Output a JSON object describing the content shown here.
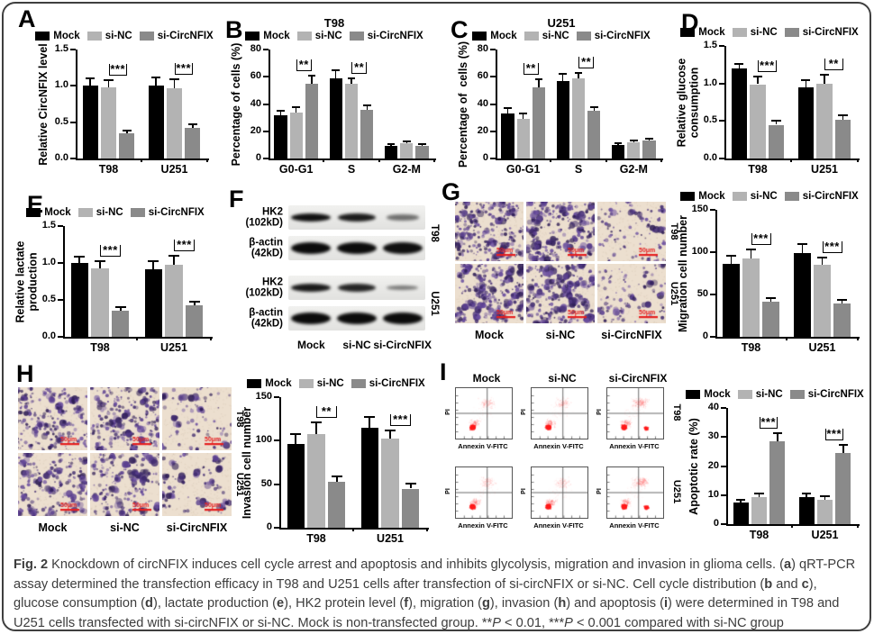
{
  "figure": {
    "caption_segments": [
      {
        "t": "Fig. 2",
        "b": true
      },
      {
        "t": " Knockdown of circNFIX induces cell cycle arrest and apoptosis and inhibits glycolysis, migration and invasion in glioma cells. ("
      },
      {
        "t": "a",
        "b": true
      },
      {
        "t": ") qRT-PCR assay determined the transfection efficacy in T98 and U251 cells after transfection of si-circNFIX or si-NC. Cell cycle distribution ("
      },
      {
        "t": "b",
        "b": true
      },
      {
        "t": " and "
      },
      {
        "t": "c",
        "b": true
      },
      {
        "t": "), glucose consumption ("
      },
      {
        "t": "d",
        "b": true
      },
      {
        "t": "), lactate production ("
      },
      {
        "t": "e",
        "b": true
      },
      {
        "t": "), HK2 protein level ("
      },
      {
        "t": "f",
        "b": true
      },
      {
        "t": "), migration ("
      },
      {
        "t": "g",
        "b": true
      },
      {
        "t": "), invasion ("
      },
      {
        "t": "h",
        "b": true
      },
      {
        "t": ") and apoptosis ("
      },
      {
        "t": "i",
        "b": true
      },
      {
        "t": ") were determined in T98 and U251 cells transfected with si-circNFIX or si-NC. Mock is non-transfected group. **"
      },
      {
        "t": "P",
        "i": true
      },
      {
        "t": " < 0.01, ***"
      },
      {
        "t": "P",
        "i": true
      },
      {
        "t": " < 0.001 compared with si-NC group"
      }
    ]
  },
  "colors": {
    "mock": "#000000",
    "si_nc": "#b3b3b3",
    "si_circnfix": "#8a8a8a",
    "scale_bar_red": "#e61f1f",
    "flow_dot_red": "#ff1f1f",
    "transwell_bg": "#ecdfcf",
    "border": "#3f3f3f"
  },
  "panels": {
    "A": {
      "label": "A"
    },
    "B": {
      "label": "B"
    },
    "C": {
      "label": "C"
    },
    "D": {
      "label": "D"
    },
    "E": {
      "label": "E"
    },
    "F": {
      "label": "F",
      "lanes": [
        "Mock",
        "si-NC",
        "si-CircNFIX"
      ],
      "groups": [
        {
          "side": "T98",
          "rows": [
            {
              "label": "HK2\n(102kD)",
              "bands": [
                {
                  "in": 0.97,
                  "w": 1
                },
                {
                  "in": 0.92,
                  "w": 0.95
                },
                {
                  "in": 0.55,
                  "w": 0.82,
                  "h": 0.7
                }
              ]
            },
            {
              "label": "β-actin\n(42kD)",
              "bands": [
                {
                  "in": 1,
                  "w": 1
                },
                {
                  "in": 1,
                  "w": 1
                },
                {
                  "in": 0.98,
                  "w": 1
                }
              ]
            }
          ]
        },
        {
          "side": "U251",
          "rows": [
            {
              "label": "HK2\n(102kD)",
              "bands": [
                {
                  "in": 0.93,
                  "w": 1
                },
                {
                  "in": 0.88,
                  "w": 0.95
                },
                {
                  "in": 0.5,
                  "w": 0.8,
                  "h": 0.6
                }
              ]
            },
            {
              "label": "β-actin\n(42kD)",
              "bands": [
                {
                  "in": 1,
                  "w": 1
                },
                {
                  "in": 1,
                  "w": 1
                },
                {
                  "in": 1,
                  "w": 1
                }
              ]
            }
          ]
        }
      ]
    },
    "G": {
      "label": "G",
      "images": {
        "rows": [
          "T98",
          "U251"
        ],
        "cols": [
          "Mock",
          "si-NC",
          "si-CircNFIX"
        ],
        "scale_bar": "50μm",
        "densities": [
          [
            170,
            160,
            62
          ],
          [
            168,
            175,
            66
          ]
        ]
      }
    },
    "H": {
      "label": "H",
      "images": {
        "rows": [
          "T98",
          "U251"
        ],
        "cols": [
          "Mock",
          "si-NC",
          "si-CircNFIX"
        ],
        "scale_bar": "50μm",
        "densities": [
          [
            150,
            145,
            55
          ],
          [
            140,
            135,
            50
          ]
        ]
      }
    },
    "I": {
      "label": "I",
      "flow": {
        "cols": [
          "Mock",
          "si-NC",
          "si-CircNFIX"
        ],
        "rows": [
          "T98",
          "U251"
        ],
        "xlabel": "Annexin V-FITC",
        "ylabel": "PI"
      }
    }
  },
  "chart_data": [
    {
      "panel": "A",
      "type": "bar",
      "title": "",
      "ylabel": "Relative CircNFIX level",
      "ylim": [
        0,
        1.5
      ],
      "yticks": [
        "0.0",
        "0.5",
        "1.0",
        "1.5"
      ],
      "categories": [
        "T98",
        "U251"
      ],
      "series": [
        {
          "name": "Mock",
          "color": "#000000",
          "values": [
            1.0,
            1.01
          ],
          "errors": [
            0.1,
            0.1
          ]
        },
        {
          "name": "si-NC",
          "color": "#b3b3b3",
          "values": [
            0.98,
            0.97
          ],
          "errors": [
            0.1,
            0.12
          ]
        },
        {
          "name": "si-CircNFIX",
          "color": "#8a8a8a",
          "values": [
            0.35,
            0.42
          ],
          "errors": [
            0.04,
            0.05
          ]
        }
      ],
      "sig": [
        {
          "cat": 0,
          "from": 1,
          "to": 2,
          "label": "***"
        },
        {
          "cat": 1,
          "from": 1,
          "to": 2,
          "label": "***"
        }
      ]
    },
    {
      "panel": "B",
      "type": "bar",
      "title": "T98",
      "ylabel": "Percentage of cells (%)",
      "ylim": [
        0,
        80
      ],
      "yticks": [
        "0",
        "20",
        "40",
        "60",
        "80"
      ],
      "categories": [
        "G0-G1",
        "S",
        "G2-M"
      ],
      "series": [
        {
          "name": "Mock",
          "color": "#000000",
          "values": [
            32,
            59,
            9
          ],
          "errors": [
            3,
            6,
            1.5
          ]
        },
        {
          "name": "si-NC",
          "color": "#b3b3b3",
          "values": [
            34,
            55,
            11
          ],
          "errors": [
            4,
            4,
            1.5
          ]
        },
        {
          "name": "si-CircNFIX",
          "color": "#8a8a8a",
          "values": [
            55,
            36,
            9
          ],
          "errors": [
            6,
            3,
            1.5
          ]
        }
      ],
      "sig": [
        {
          "cat": 0,
          "from": 1,
          "to": 2,
          "label": "**"
        },
        {
          "cat": 1,
          "from": 1,
          "to": 2,
          "label": "**"
        }
      ]
    },
    {
      "panel": "C",
      "type": "bar",
      "title": "U251",
      "ylabel": "Percentage of  cells (%)",
      "ylim": [
        0,
        80
      ],
      "yticks": [
        "0",
        "20",
        "40",
        "60",
        "80"
      ],
      "categories": [
        "G0-G1",
        "S",
        "G2-M"
      ],
      "series": [
        {
          "name": "Mock",
          "color": "#000000",
          "values": [
            33,
            57,
            10
          ],
          "errors": [
            4,
            5,
            1
          ]
        },
        {
          "name": "si-NC",
          "color": "#b3b3b3",
          "values": [
            29,
            59,
            12
          ],
          "errors": [
            4,
            4,
            1.5
          ]
        },
        {
          "name": "si-CircNFIX",
          "color": "#8a8a8a",
          "values": [
            52,
            35,
            13
          ],
          "errors": [
            6,
            3,
            1.5
          ]
        }
      ],
      "sig": [
        {
          "cat": 0,
          "from": 1,
          "to": 2,
          "label": "**"
        },
        {
          "cat": 1,
          "from": 1,
          "to": 2,
          "label": "**"
        }
      ]
    },
    {
      "panel": "D",
      "type": "bar",
      "title": "",
      "ylabel": "Relative glucose\nconsumption",
      "ylim": [
        0,
        1.5
      ],
      "yticks": [
        "0.0",
        "0.5",
        "1.0",
        "1.5"
      ],
      "categories": [
        "T98",
        "U251"
      ],
      "series": [
        {
          "name": "Mock",
          "color": "#000000",
          "values": [
            1.2,
            0.95
          ],
          "errors": [
            0.06,
            0.09
          ]
        },
        {
          "name": "si-NC",
          "color": "#b3b3b3",
          "values": [
            0.99,
            1.0
          ],
          "errors": [
            0.1,
            0.12
          ]
        },
        {
          "name": "si-CircNFIX",
          "color": "#8a8a8a",
          "values": [
            0.45,
            0.52
          ],
          "errors": [
            0.05,
            0.06
          ]
        }
      ],
      "sig": [
        {
          "cat": 0,
          "from": 1,
          "to": 2,
          "label": "***"
        },
        {
          "cat": 1,
          "from": 1,
          "to": 2,
          "label": "**"
        }
      ]
    },
    {
      "panel": "E",
      "type": "bar",
      "title": "",
      "ylabel": "Relative lactate\nproduction",
      "ylim": [
        0,
        1.5
      ],
      "yticks": [
        "0.0",
        "0.5",
        "1.0",
        "1.5"
      ],
      "categories": [
        "T98",
        "U251"
      ],
      "series": [
        {
          "name": "Mock",
          "color": "#000000",
          "values": [
            1.0,
            0.92
          ],
          "errors": [
            0.08,
            0.1
          ]
        },
        {
          "name": "si-NC",
          "color": "#b3b3b3",
          "values": [
            0.93,
            0.98
          ],
          "errors": [
            0.09,
            0.12
          ]
        },
        {
          "name": "si-CircNFIX",
          "color": "#8a8a8a",
          "values": [
            0.35,
            0.43
          ],
          "errors": [
            0.05,
            0.05
          ]
        }
      ],
      "sig": [
        {
          "cat": 0,
          "from": 1,
          "to": 2,
          "label": "***"
        },
        {
          "cat": 1,
          "from": 1,
          "to": 2,
          "label": "***"
        }
      ]
    },
    {
      "panel": "G",
      "type": "bar",
      "title": "",
      "ylabel": "Migration cell number",
      "ylim": [
        0,
        150
      ],
      "yticks": [
        "0",
        "50",
        "100",
        "150"
      ],
      "categories": [
        "T98",
        "U251"
      ],
      "series": [
        {
          "name": "Mock",
          "color": "#000000",
          "values": [
            86,
            99
          ],
          "errors": [
            10,
            11
          ]
        },
        {
          "name": "si-NC",
          "color": "#b3b3b3",
          "values": [
            93,
            85
          ],
          "errors": [
            10,
            9
          ]
        },
        {
          "name": "si-CircNFIX",
          "color": "#8a8a8a",
          "values": [
            41,
            39
          ],
          "errors": [
            5,
            5
          ]
        }
      ],
      "sig": [
        {
          "cat": 0,
          "from": 1,
          "to": 2,
          "label": "***"
        },
        {
          "cat": 1,
          "from": 1,
          "to": 2,
          "label": "***"
        }
      ]
    },
    {
      "panel": "H",
      "type": "bar",
      "title": "",
      "ylabel": "Invasion cell number",
      "ylim": [
        0,
        150
      ],
      "yticks": [
        "0",
        "50",
        "100",
        "150"
      ],
      "categories": [
        "T98",
        "U251"
      ],
      "series": [
        {
          "name": "Mock",
          "color": "#000000",
          "values": [
            96,
            115
          ],
          "errors": [
            12,
            12
          ]
        },
        {
          "name": "si-NC",
          "color": "#b3b3b3",
          "values": [
            108,
            102
          ],
          "errors": [
            13,
            10
          ]
        },
        {
          "name": "si-CircNFIX",
          "color": "#8a8a8a",
          "values": [
            53,
            45
          ],
          "errors": [
            6,
            6
          ]
        }
      ],
      "sig": [
        {
          "cat": 0,
          "from": 1,
          "to": 2,
          "label": "**"
        },
        {
          "cat": 1,
          "from": 1,
          "to": 2,
          "label": "***"
        }
      ]
    },
    {
      "panel": "I",
      "type": "bar",
      "title": "",
      "ylabel": "Apoptotic rate (%)",
      "ylim": [
        0,
        40
      ],
      "yticks": [
        "0",
        "10",
        "20",
        "30",
        "40"
      ],
      "categories": [
        "T98",
        "U251"
      ],
      "series": [
        {
          "name": "Mock",
          "color": "#000000",
          "values": [
            7.5,
            9.3
          ],
          "errors": [
            1,
            1.2
          ]
        },
        {
          "name": "si-NC",
          "color": "#b3b3b3",
          "values": [
            9.2,
            8.5
          ],
          "errors": [
            1.2,
            1.2
          ]
        },
        {
          "name": "si-CircNFIX",
          "color": "#8a8a8a",
          "values": [
            28.5,
            24.5
          ],
          "errors": [
            2.8,
            2.8
          ]
        }
      ],
      "sig": [
        {
          "cat": 0,
          "from": 1,
          "to": 2,
          "label": "***"
        },
        {
          "cat": 1,
          "from": 1,
          "to": 2,
          "label": "***"
        }
      ]
    }
  ]
}
